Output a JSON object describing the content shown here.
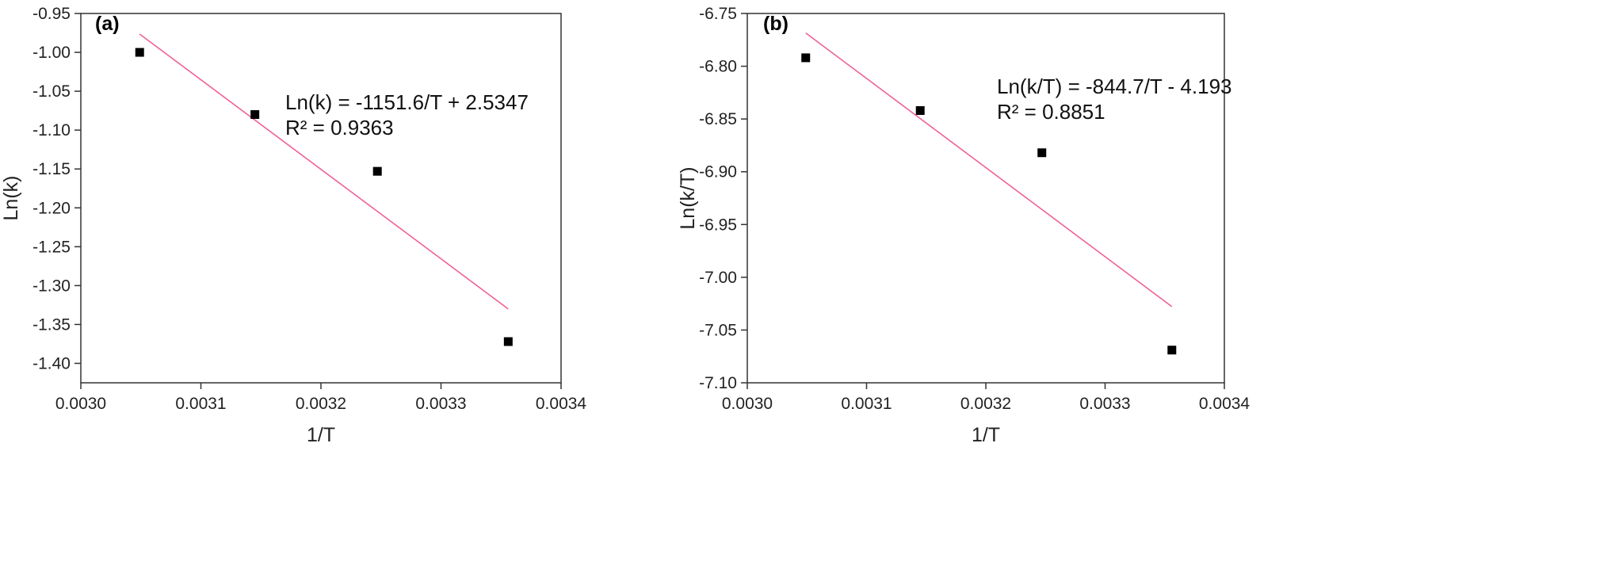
{
  "chart_data": [
    {
      "type": "scatter",
      "panel_label": "(a)",
      "xlabel": "1/T",
      "ylabel": "Ln(k)",
      "xlim": [
        0.003,
        0.0034
      ],
      "ylim": [
        -1.425,
        -0.95
      ],
      "x_ticks": [
        0.003,
        0.0031,
        0.0032,
        0.0033,
        0.0034
      ],
      "x_tick_labels": [
        "0.0030",
        "0.0031",
        "0.0032",
        "0.0033",
        "0.0034"
      ],
      "y_ticks": [
        -0.95,
        -1.0,
        -1.05,
        -1.1,
        -1.15,
        -1.2,
        -1.25,
        -1.3,
        -1.35,
        -1.4
      ],
      "y_tick_labels": [
        "-0.95",
        "-1.00",
        "-1.05",
        "-1.10",
        "-1.15",
        "-1.20",
        "-1.25",
        "-1.30",
        "-1.35",
        "-1.40"
      ],
      "points": [
        {
          "x": 0.003049,
          "y": -1.0
        },
        {
          "x": 0.003145,
          "y": -1.08
        },
        {
          "x": 0.003247,
          "y": -1.153
        },
        {
          "x": 0.003356,
          "y": -1.372
        }
      ],
      "fit": {
        "slope": -1151.6,
        "intercept": 2.5347,
        "x_range": [
          0.003049,
          0.003356
        ]
      },
      "equation_text": "Ln(k) = -1151.6/T + 2.5347",
      "r2_text": "R² = 0.9363",
      "colors": {
        "points": "#000000",
        "fit": "#f0609a"
      },
      "grid": false
    },
    {
      "type": "scatter",
      "panel_label": "(b)",
      "xlabel": "1/T",
      "ylabel": "Ln(k/T)",
      "xlim": [
        0.003,
        0.0034
      ],
      "ylim": [
        -7.1,
        -6.75
      ],
      "x_ticks": [
        0.003,
        0.0031,
        0.0032,
        0.0033,
        0.0034
      ],
      "x_tick_labels": [
        "0.0030",
        "0.0031",
        "0.0032",
        "0.0033",
        "0.0034"
      ],
      "y_ticks": [
        -6.75,
        -6.8,
        -6.85,
        -6.9,
        -6.95,
        -7.0,
        -7.05,
        -7.1
      ],
      "y_tick_labels": [
        "-6.75",
        "-6.80",
        "-6.85",
        "-6.90",
        "-6.95",
        "-7.00",
        "-7.05",
        "-7.10"
      ],
      "points": [
        {
          "x": 0.003049,
          "y": -6.792
        },
        {
          "x": 0.003145,
          "y": -6.842
        },
        {
          "x": 0.003247,
          "y": -6.882
        },
        {
          "x": 0.003356,
          "y": -7.069
        }
      ],
      "fit": {
        "slope": -844.7,
        "intercept": -4.193,
        "x_range": [
          0.003049,
          0.003356
        ]
      },
      "equation_text": "Ln(k/T) = -844.7/T - 4.193",
      "r2_text": "R² = 0.8851",
      "colors": {
        "points": "#000000",
        "fit": "#f0609a"
      },
      "grid": false
    }
  ]
}
